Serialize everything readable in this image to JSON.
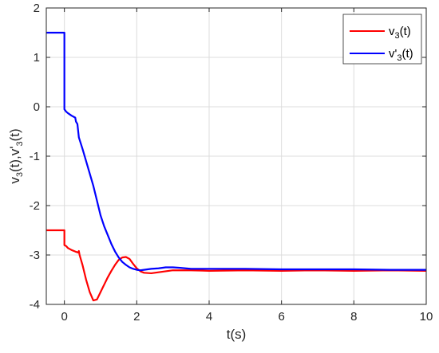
{
  "chart_data": {
    "type": "line",
    "xlabel": "t(s)",
    "ylabel": {
      "parts": [
        "v",
        "3",
        "(t),v'",
        "3",
        "(t)"
      ]
    },
    "xlim": [
      -0.5,
      10
    ],
    "ylim": [
      -4,
      2
    ],
    "xticks": [
      0,
      2,
      4,
      6,
      8,
      10
    ],
    "yticks": [
      -4,
      -3,
      -2,
      -1,
      0,
      1,
      2
    ],
    "xtick_labels": [
      "0",
      "2",
      "4",
      "6",
      "8",
      "10"
    ],
    "ytick_labels": [
      "-4",
      "-3",
      "-2",
      "-1",
      "0",
      "1",
      "2"
    ],
    "grid": true,
    "legend_position": "top-right",
    "series": [
      {
        "name": "v3(t)",
        "legend_parts": [
          "v",
          "3",
          "(t)"
        ],
        "color": "#ff0000",
        "x": [
          -0.5,
          0.0,
          0.0,
          0.05,
          0.1,
          0.2,
          0.3,
          0.38,
          0.4,
          0.42,
          0.5,
          0.6,
          0.7,
          0.8,
          0.9,
          1.0,
          1.1,
          1.2,
          1.3,
          1.4,
          1.5,
          1.6,
          1.7,
          1.8,
          1.9,
          2.0,
          2.1,
          2.2,
          2.4,
          2.6,
          2.8,
          3.0,
          3.5,
          4.0,
          5.0,
          6.0,
          7.0,
          8.0,
          9.0,
          10.0
        ],
        "y": [
          -2.5,
          -2.5,
          -2.8,
          -2.82,
          -2.86,
          -2.9,
          -2.93,
          -2.95,
          -2.92,
          -3.0,
          -3.2,
          -3.5,
          -3.75,
          -3.92,
          -3.9,
          -3.75,
          -3.6,
          -3.45,
          -3.32,
          -3.2,
          -3.1,
          -3.05,
          -3.04,
          -3.08,
          -3.18,
          -3.27,
          -3.33,
          -3.36,
          -3.37,
          -3.35,
          -3.33,
          -3.31,
          -3.31,
          -3.32,
          -3.31,
          -3.32,
          -3.31,
          -3.32,
          -3.31,
          -3.32
        ]
      },
      {
        "name": "v'3(t)",
        "legend_parts": [
          "v'",
          "3",
          "(t)"
        ],
        "color": "#0000ff",
        "x": [
          -0.5,
          0.0,
          0.0,
          0.05,
          0.1,
          0.2,
          0.3,
          0.32,
          0.36,
          0.4,
          0.5,
          0.6,
          0.7,
          0.8,
          0.9,
          1.0,
          1.1,
          1.2,
          1.3,
          1.4,
          1.5,
          1.6,
          1.7,
          1.8,
          1.9,
          2.0,
          2.1,
          2.2,
          2.4,
          2.6,
          2.8,
          3.0,
          3.2,
          3.5,
          4.0,
          5.0,
          6.0,
          7.0,
          8.0,
          9.0,
          10.0
        ],
        "y": [
          1.5,
          1.5,
          -0.05,
          -0.1,
          -0.13,
          -0.18,
          -0.22,
          -0.3,
          -0.35,
          -0.62,
          -0.85,
          -1.1,
          -1.35,
          -1.6,
          -1.9,
          -2.2,
          -2.42,
          -2.6,
          -2.78,
          -2.93,
          -3.05,
          -3.14,
          -3.2,
          -3.25,
          -3.28,
          -3.3,
          -3.31,
          -3.3,
          -3.28,
          -3.27,
          -3.25,
          -3.25,
          -3.26,
          -3.28,
          -3.28,
          -3.28,
          -3.29,
          -3.29,
          -3.29,
          -3.3,
          -3.3
        ]
      }
    ]
  }
}
